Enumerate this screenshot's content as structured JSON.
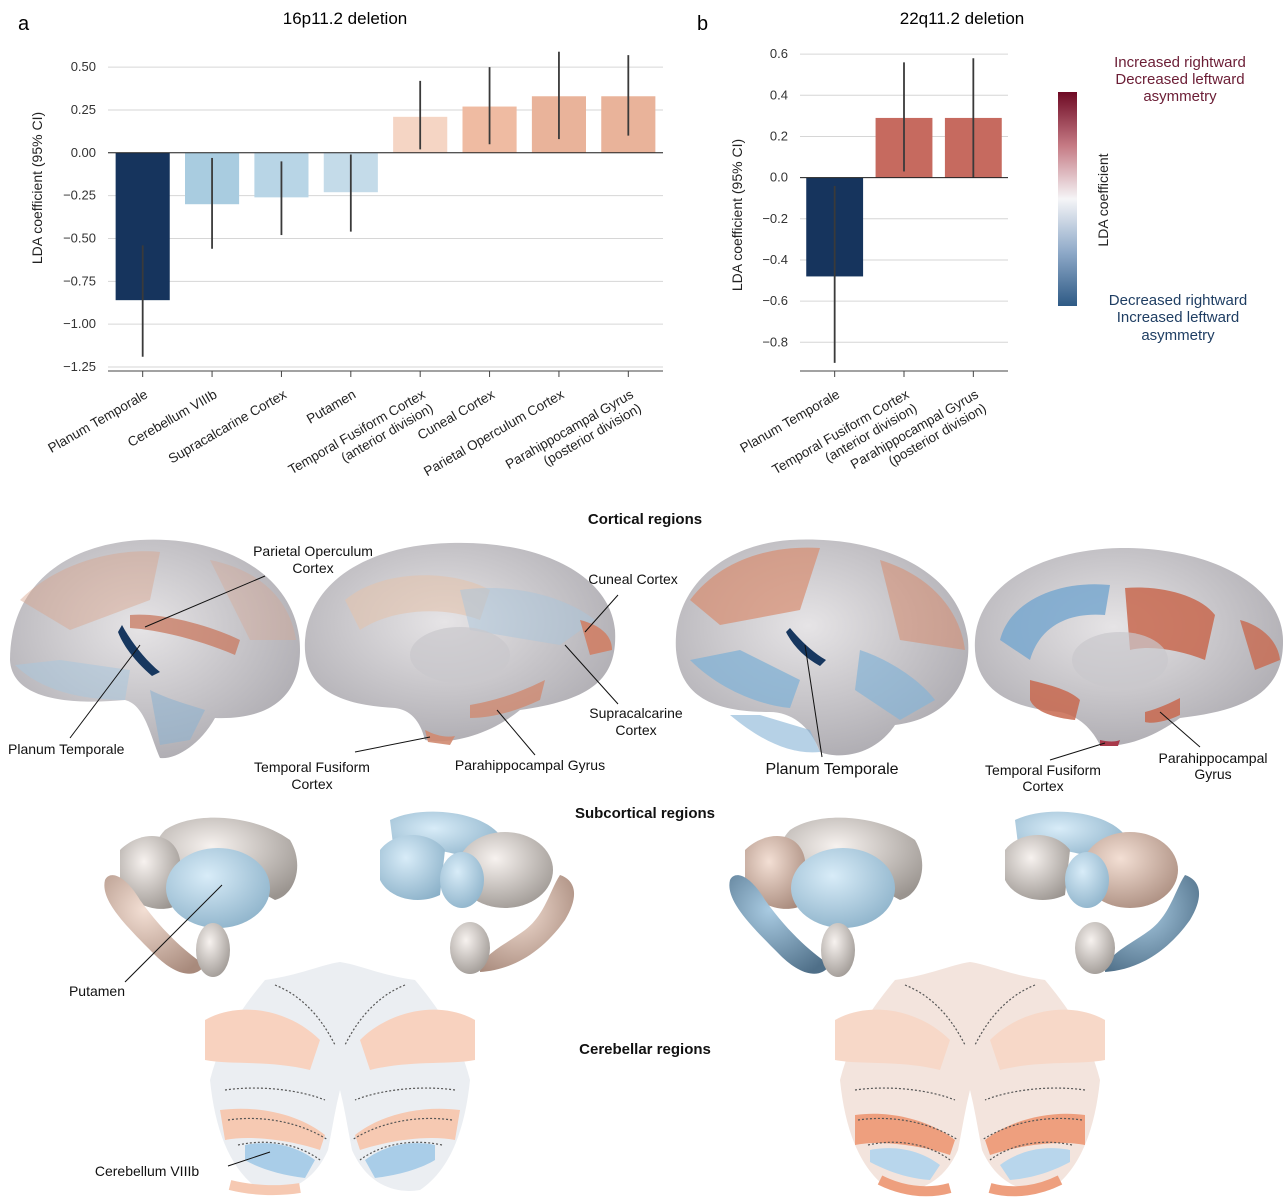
{
  "panels": {
    "a_letter": "a",
    "b_letter": "b"
  },
  "chart_data": [
    {
      "type": "bar",
      "title": "16p11.2 deletion",
      "ylabel": "LDA coefficient (95% CI)",
      "xlabel": "",
      "ylim": [
        -1.25,
        0.6
      ],
      "yticks": [
        "0.50",
        "0.25",
        "0.00",
        "−0.25",
        "−0.50",
        "−0.75",
        "−1.00",
        "−1.25"
      ],
      "ytick_values": [
        0.5,
        0.25,
        0,
        -0.25,
        -0.5,
        -0.75,
        -1.0,
        -1.25
      ],
      "grid": true,
      "categories": [
        [
          "Planum Temporale"
        ],
        [
          "Cerebellum VIIIb"
        ],
        [
          "Supracalcarine Cortex"
        ],
        [
          "Putamen"
        ],
        [
          "Temporal Fusiform Cortex",
          "(anterior division)"
        ],
        [
          "Cuneal Cortex"
        ],
        [
          "Parietal Operculum Cortex"
        ],
        [
          "Parahippocampal Gyrus",
          "(posterior division)"
        ]
      ],
      "values": [
        -0.86,
        -0.3,
        -0.26,
        -0.23,
        0.21,
        0.27,
        0.33,
        0.33
      ],
      "ci_low": [
        -1.19,
        -0.56,
        -0.48,
        -0.46,
        0.02,
        0.05,
        0.08,
        0.1
      ],
      "ci_high": [
        -0.54,
        -0.03,
        -0.05,
        -0.01,
        0.42,
        0.5,
        0.59,
        0.57
      ],
      "colors": [
        "#16345d",
        "#a9cce0",
        "#b8d5e6",
        "#c4dbe9",
        "#f5d5c4",
        "#efbba2",
        "#e9b39a",
        "#e9b39a"
      ]
    },
    {
      "type": "bar",
      "title": "22q11.2 deletion",
      "ylabel": "LDA coefficient (95% CI)",
      "xlabel": "",
      "ylim": [
        -0.92,
        0.62
      ],
      "yticks": [
        "0.6",
        "0.4",
        "0.2",
        "0.0",
        "−0.2",
        "−0.4",
        "−0.6",
        "−0.8"
      ],
      "ytick_values": [
        0.6,
        0.4,
        0.2,
        0,
        -0.2,
        -0.4,
        -0.6,
        -0.8
      ],
      "grid": true,
      "categories": [
        [
          "Planum Temporale"
        ],
        [
          "Temporal Fusiform Cortex",
          "(anterior division)"
        ],
        [
          "Parahippocampal Gyrus",
          "(posterior division)"
        ]
      ],
      "values": [
        -0.48,
        0.29,
        0.29
      ],
      "ci_low": [
        -0.9,
        0.03,
        0.0
      ],
      "ci_high": [
        -0.04,
        0.56,
        0.58
      ],
      "colors": [
        "#16345d",
        "#c66a5f",
        "#c66a5f"
      ]
    }
  ],
  "legend": {
    "top_lines": [
      "Increased rightward",
      "Decreased leftward",
      "asymmetry"
    ],
    "bottom_lines": [
      "Decreased rightward",
      "Increased leftward",
      "asymmetry"
    ],
    "colorbar_label": "LDA coefficient",
    "colorbar_colors": [
      "#6e0a24",
      "#f5f5f7",
      "#2e5a85"
    ]
  },
  "sections": {
    "cortical": "Cortical regions",
    "subcortical": "Subcortical regions",
    "cerebellar": "Cerebellar regions"
  },
  "annotations": {
    "parietal_operculum": [
      "Parietal Operculum",
      "Cortex"
    ],
    "planum_temporale_left": "Planum Temporale",
    "cuneal": "Cuneal Cortex",
    "supracalcarine": [
      "Supracalcarine",
      "Cortex"
    ],
    "temporal_fusiform_left": [
      "Temporal Fusiform",
      "Cortex"
    ],
    "parahippocampal_left": "Parahippocampal Gyrus",
    "planum_temporale_right": "Planum Temporale",
    "temporal_fusiform_right": [
      "Temporal Fusiform",
      "Cortex"
    ],
    "parahippocampal_right": [
      "Parahippocampal",
      "Gyrus"
    ],
    "putamen": "Putamen",
    "cerebellum_viiib": "Cerebellum VIIIb"
  }
}
